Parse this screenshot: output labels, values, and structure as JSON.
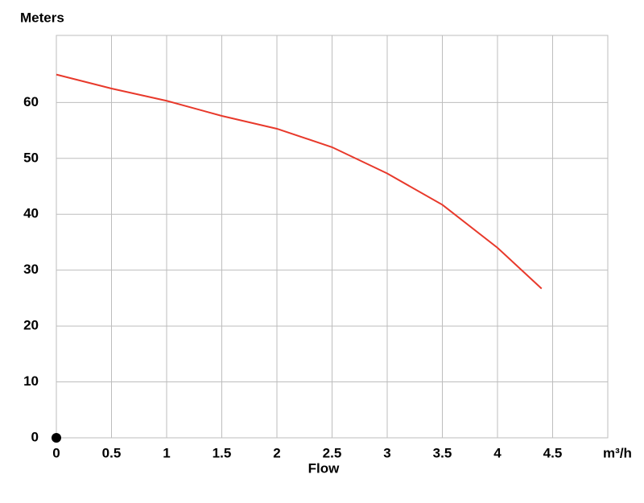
{
  "chart_data": {
    "type": "line",
    "y_label": "Meters",
    "x_label": "Flow",
    "x": [
      0,
      0.5,
      1,
      1.5,
      2,
      2.5,
      3,
      3.5,
      4,
      4.4
    ],
    "series": [
      {
        "color": "#e8392b",
        "values": [
          65,
          62.5,
          60.3,
          57.6,
          55.3,
          52,
          47.3,
          41.7,
          34,
          26.7
        ]
      }
    ],
    "xlim": [
      0,
      5
    ],
    "ylim": [
      0,
      72
    ],
    "xticks": [
      0,
      0.5,
      1,
      1.5,
      2,
      2.5,
      3,
      3.5,
      4,
      4.5,
      {
        "value": 5,
        "label": "m³/h"
      }
    ],
    "yticks": [
      0,
      10,
      20,
      30,
      40,
      50,
      60
    ],
    "grid": true,
    "marker": {
      "x": 0,
      "y": 0,
      "color": "#000000"
    }
  }
}
